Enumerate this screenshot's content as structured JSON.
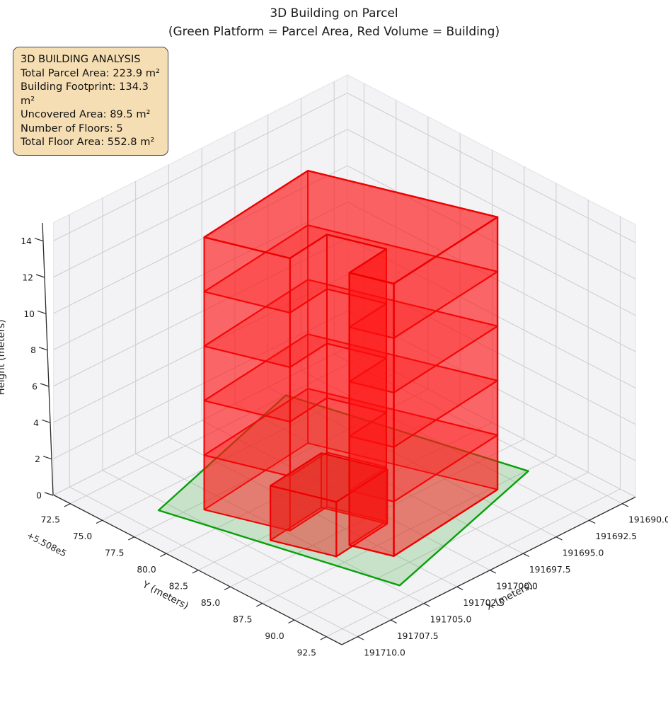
{
  "figure": {
    "title_line1": "3D Building on Parcel",
    "title_line2": "(Green Platform = Parcel Area, Red Volume = Building)"
  },
  "info_box": {
    "title": "3D BUILDING ANALYSIS",
    "lines": [
      "Total Parcel Area: 223.9 m²",
      "Building Footprint: 134.3 m²",
      "Uncovered Area: 89.5 m²",
      "Number of Floors: 5",
      "Total Floor Area: 552.8 m²"
    ]
  },
  "axes": {
    "x": {
      "label": "X (meters)",
      "tick_labels": [
        "191690.0",
        "191692.5",
        "191695.0",
        "191697.5",
        "191700.0",
        "191702.5",
        "191705.0",
        "191707.5",
        "191710.0"
      ]
    },
    "y": {
      "label": "Y (meters)",
      "offset_text": "+5.508e5",
      "offset_value": 550800,
      "tick_labels": [
        "72.5",
        "75.0",
        "77.5",
        "80.0",
        "82.5",
        "85.0",
        "87.5",
        "90.0",
        "92.5"
      ]
    },
    "z": {
      "label": "Height (meters)",
      "tick_labels": [
        "0",
        "2",
        "4",
        "6",
        "8",
        "10",
        "12",
        "14"
      ]
    }
  },
  "chart_data": {
    "type": "3d-extrusion",
    "title": "3D Building on Parcel",
    "x_range": [
      191689.0,
      191711.2
    ],
    "y_range": [
      550871.2,
      550893.7
    ],
    "z_range": [
      0,
      15
    ],
    "stats": {
      "total_parcel_area_m2": 223.9,
      "building_footprint_m2": 134.3,
      "uncovered_area_m2": 89.5,
      "num_floors": 5,
      "total_floor_area_m2": 552.8
    },
    "parcel": {
      "z": 0,
      "polygon_xy": [
        [
          191708.3,
          550876.4
        ],
        [
          191704.6,
          550891.4
        ],
        [
          191691.2,
          550887.6
        ],
        [
          191694.9,
          550872.5
        ]
      ]
    },
    "building": {
      "num_floors": 5,
      "floor_height_m": 3,
      "height_m": 15,
      "slab_levels": [
        3,
        6,
        9,
        12
      ],
      "footprint_xy": [
        [
          191697.6,
          550877.0
        ],
        [
          191706.5,
          550878.1
        ],
        [
          191704.76,
          550883.0
        ],
        [
          191701.59,
          550882.61
        ],
        [
          191700.38,
          550886.0
        ],
        [
          191703.55,
          550886.39
        ],
        [
          191702.65,
          550888.93
        ],
        [
          191693.75,
          550887.83
        ]
      ],
      "far_wall_edges": [
        [
          7,
          0
        ],
        [
          0,
          1
        ]
      ],
      "recess_wall_edges": [
        [
          1,
          2
        ],
        [
          2,
          3
        ],
        [
          3,
          4
        ],
        [
          4,
          5
        ]
      ],
      "near_wall_edges": [
        [
          5,
          6
        ],
        [
          6,
          7
        ]
      ],
      "annex": {
        "height_m": 3,
        "polygon_xy": [
          [
            191706.22,
            550882.98
          ],
          [
            191704.88,
            550886.75
          ],
          [
            191700.51,
            550886.21
          ],
          [
            191701.85,
            550882.44
          ]
        ]
      }
    },
    "colors": {
      "parcel_edge": "#0aa00a",
      "parcel_face": "rgba(50,170,50,0.22)",
      "building_edge": "#ee0000",
      "wall_face": "rgba(255,16,16,0.38)",
      "slab_face": "rgba(255,32,32,0.28)",
      "top_face": "rgba(255,16,16,0.42)",
      "bottom_face": "rgba(255,60,60,0.20)",
      "annex_face": "rgba(232,32,22,0.48)",
      "pane": "#f3f3f5",
      "grid": "#cccccf",
      "spine": "#2b2b2b",
      "text": "#1c1c1c"
    }
  }
}
